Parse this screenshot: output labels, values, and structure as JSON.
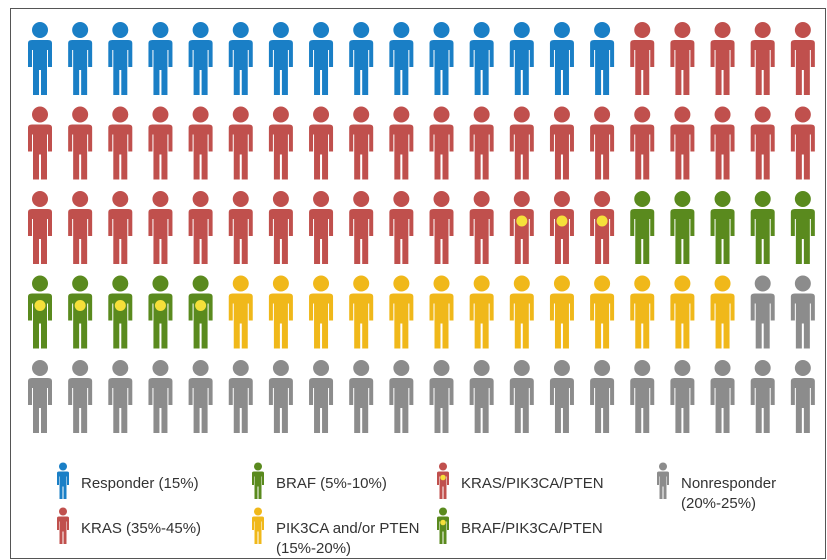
{
  "chart_data": {
    "type": "waffle",
    "series": [
      {
        "name": "Responder (15%)",
        "color": "#1a7fc6",
        "value": 15
      },
      {
        "name": "KRAS (35%-45%)",
        "color": "#c0504d",
        "value": 37
      },
      {
        "name": "KRAS/PIK3CA/PTEN",
        "color": "#c0504d",
        "dot": "#f5e03a",
        "value": 3
      },
      {
        "name": "BRAF (5%-10%)",
        "color": "#5a8a1e",
        "value": 5
      },
      {
        "name": "BRAF/PIK3CA/PTEN",
        "color": "#5a8a1e",
        "dot": "#f5e03a",
        "value": 5
      },
      {
        "name": "PIK3CA and/or PTEN (15%-20%)",
        "color": "#f0b81a",
        "value": 13
      },
      {
        "name": "Nonresponder (20%-25%)",
        "color": "#8c8c8c",
        "value": 22
      }
    ]
  }
}
